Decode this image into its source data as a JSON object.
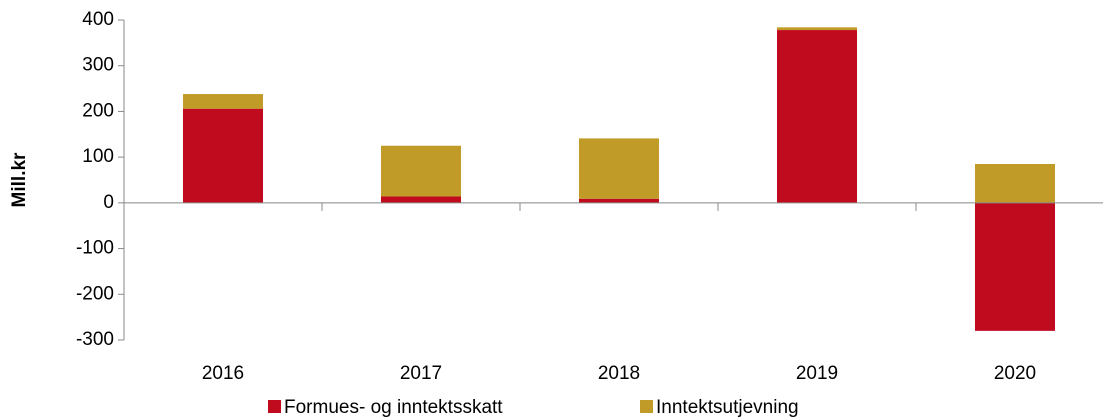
{
  "chart_data": {
    "type": "stacked_bar",
    "y_label": "Mill.kr",
    "categories": [
      "2016",
      "2017",
      "2018",
      "2019",
      "2020"
    ],
    "series": [
      {
        "name": "Formues- og inntektsskatt",
        "color": "#c00a1e",
        "values": [
          206,
          14,
          9,
          378,
          -280
        ]
      },
      {
        "name": "Inntektsutjevning",
        "color": "#c09b28",
        "values": [
          32,
          111,
          132,
          6,
          85
        ]
      }
    ],
    "ylim": [
      -300,
      400
    ],
    "yticks": [
      -300,
      -200,
      -100,
      0,
      100,
      200,
      300,
      400
    ],
    "legend": "bottom"
  }
}
